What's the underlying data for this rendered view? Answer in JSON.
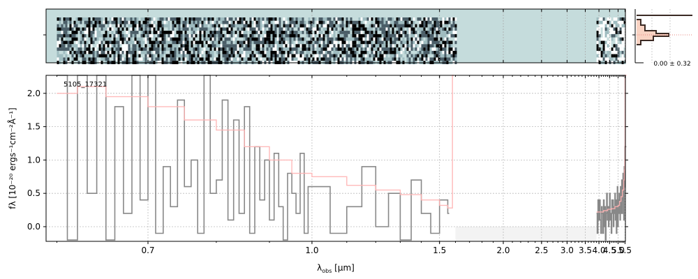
{
  "chart_data": [
    {
      "type": "heatmap",
      "panel": "2d-spectrum",
      "background_color": "#c5dcdc",
      "pixel_colormap": [
        "#000000",
        "#4b5e68",
        "#9fbcc0",
        "#c5dcdc",
        "#ffffff"
      ],
      "covered_ranges": [
        [
          0.6,
          1.6
        ],
        [
          3.9,
          5.5
        ]
      ]
    },
    {
      "type": "line",
      "panel": "cross-dispersion-profile",
      "fill_color": "#f9d3c3",
      "line_color": "#3b2a24",
      "dotted_color": "#e6807a",
      "annotation": "0.00 ± 0.32"
    },
    {
      "type": "line",
      "panel": "1d-spectrum",
      "object_label": "5105_17321",
      "xlabel": "λobs [μm]",
      "ylabel": "fλ [10⁻²⁰ ergs⁻¹cm⁻²Å⁻¹]",
      "ylim": [
        -0.22,
        2.27
      ],
      "x_scale": "reciprocal",
      "x_range": [
        0.59,
        5.53
      ],
      "x_ticks": [
        0.7,
        1.0,
        1.5,
        2.0,
        2.5,
        3.0,
        3.5,
        4.0,
        4.5,
        5.0,
        5.5
      ],
      "x_tick_labels": [
        "0.7",
        "1.0",
        "1.5",
        "2.0",
        "2.5",
        "3.0",
        "3.5",
        "4.0",
        "4.5",
        "5.0",
        "5.5"
      ],
      "y_ticks": [
        0.0,
        0.5,
        1.0,
        1.5,
        2.0
      ],
      "y_tick_labels": [
        "0.0",
        "0.5",
        "1.0",
        "1.5",
        "2.0"
      ],
      "grid": true,
      "no_coverage_band": [
        1.6,
        3.9
      ],
      "series": [
        {
          "color": "#888888",
          "style": "steps",
          "x": [
            0.6,
            0.61,
            0.62,
            0.63,
            0.64,
            0.65,
            0.66,
            0.67,
            0.68,
            0.69,
            0.7,
            0.71,
            0.72,
            0.73,
            0.74,
            0.75,
            0.76,
            0.77,
            0.78,
            0.79,
            0.8,
            0.81,
            0.82,
            0.83,
            0.84,
            0.85,
            0.86,
            0.87,
            0.88,
            0.89,
            0.9,
            0.91,
            0.92,
            0.93,
            0.94,
            0.95,
            0.96,
            0.97,
            0.98,
            0.99,
            1.0,
            1.05,
            1.1,
            1.15,
            1.2,
            1.25,
            1.3,
            1.35,
            1.4,
            1.45,
            1.5,
            1.55,
            3.9,
            3.93,
            3.96,
            3.99,
            4.02,
            4.05,
            4.08,
            4.11,
            4.14,
            4.17,
            4.2,
            4.23,
            4.26,
            4.29,
            4.32,
            4.35,
            4.38,
            4.41,
            4.44,
            4.47,
            4.5,
            4.53,
            4.56,
            4.59,
            4.62,
            4.65,
            4.68,
            4.71,
            4.74,
            4.77,
            4.8,
            4.83,
            4.86,
            4.89,
            4.92,
            4.95,
            4.98,
            5.01,
            5.04,
            5.07,
            5.1,
            5.13,
            5.16,
            5.19,
            5.22,
            5.25,
            5.28,
            5.31,
            5.34,
            5.37,
            5.4,
            5.43,
            5.46,
            5.49
          ],
          "y": [
            2.3,
            -0.2,
            2.3,
            0.5,
            2.3,
            -0.2,
            1.8,
            0.2,
            2.3,
            0.4,
            2.3,
            -0.1,
            0.9,
            0.3,
            1.9,
            0.6,
            1.0,
            -0.1,
            2.3,
            0.5,
            0.7,
            1.9,
            0.1,
            1.6,
            0.2,
            1.8,
            -0.1,
            1.2,
            0.4,
            1.0,
            0.1,
            1.1,
            0.3,
            -0.2,
            0.8,
            0.5,
            0.2,
            1.1,
            -0.1,
            0.6,
            0.6,
            -0.1,
            0.3,
            0.9,
            0.0,
            0.5,
            -0.2,
            0.7,
            0.2,
            -0.1,
            0.4,
            0.2,
            0.2,
            -0.1,
            0.4,
            0.1,
            0.4,
            0.1,
            -0.1,
            0.3,
            0.2,
            -0.1,
            0.4,
            0.0,
            0.3,
            -0.2,
            0.2,
            0.5,
            0.1,
            0.3,
            0.0,
            0.3,
            0.5,
            0.1,
            0.2,
            -0.1,
            0.4,
            0.2,
            0.4,
            0.0,
            0.3,
            0.2,
            0.5,
            0.1,
            0.4,
            -0.1,
            0.3,
            0.6,
            0.0,
            0.4,
            0.2,
            0.5,
            0.3,
            0.1,
            0.6,
            0.2,
            0.4,
            0.7,
            0.2,
            0.5,
            0.8,
            0.4,
            0.1,
            0.9,
            0.6,
            1.2
          ]
        },
        {
          "color": "#ffb3b3",
          "style": "steps",
          "x": [
            0.6,
            0.62,
            0.65,
            0.7,
            0.75,
            0.8,
            0.85,
            0.9,
            0.95,
            1.0,
            1.1,
            1.2,
            1.3,
            1.4,
            1.5,
            1.55,
            1.58,
            3.9,
            4.0,
            4.2,
            4.4,
            4.6,
            4.8,
            5.0,
            5.1,
            5.2,
            5.3,
            5.4,
            5.45,
            5.48,
            5.5
          ],
          "y": [
            2.0,
            2.1,
            1.95,
            1.8,
            1.6,
            1.45,
            1.2,
            1.0,
            0.8,
            0.75,
            0.62,
            0.55,
            0.48,
            0.4,
            0.32,
            0.28,
            2.3,
            0.22,
            0.22,
            0.24,
            0.26,
            0.27,
            0.3,
            0.32,
            0.38,
            0.45,
            0.55,
            0.7,
            0.85,
            1.0,
            2.3
          ]
        }
      ]
    }
  ]
}
